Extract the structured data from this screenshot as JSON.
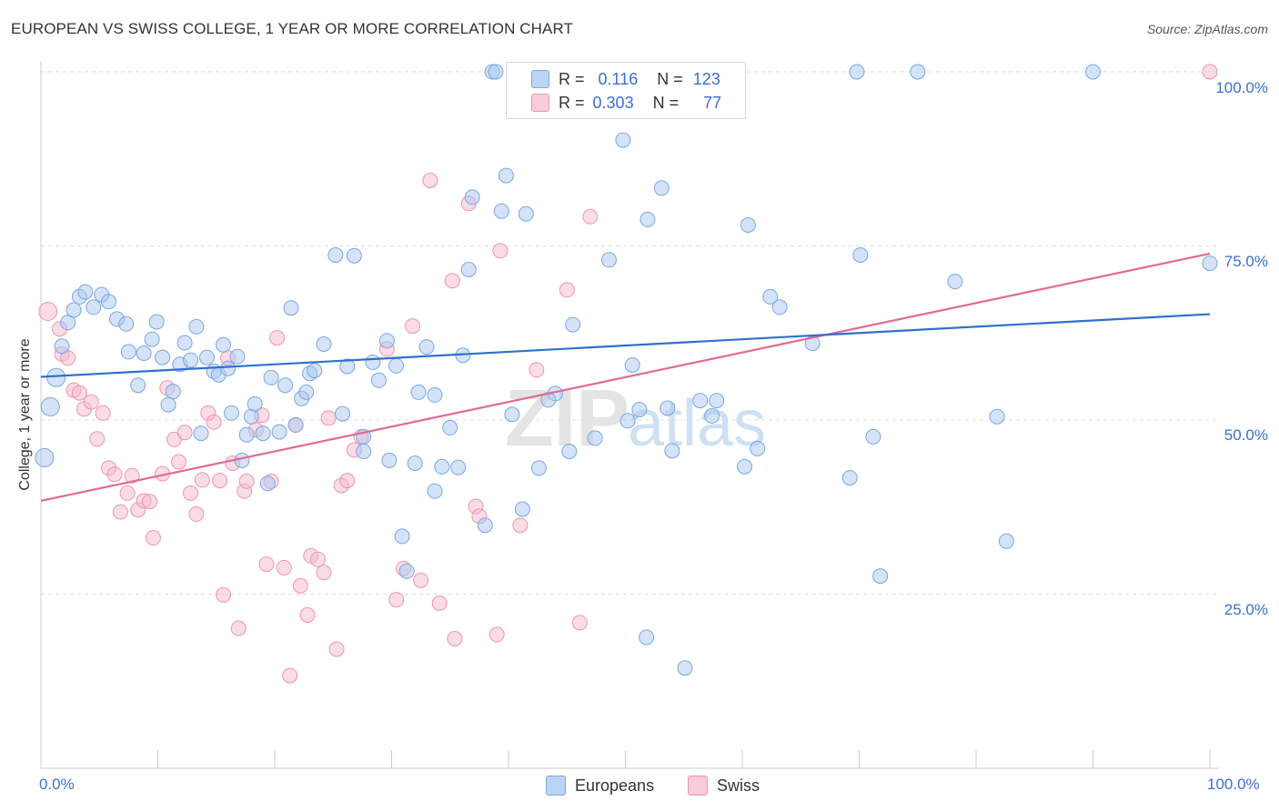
{
  "title": "EUROPEAN VS SWISS COLLEGE, 1 YEAR OR MORE CORRELATION CHART",
  "source": "Source: ZipAtlas.com",
  "legend": {
    "europeans": {
      "r_label": "R =",
      "r_value": "0.116",
      "n_label": "N =",
      "n_value": "123"
    },
    "swiss": {
      "r_label": "R =",
      "r_value": "0.303",
      "n_label": "N =",
      "n_value": "77"
    }
  },
  "bottom_legend": {
    "europeans": "Europeans",
    "swiss": "Swiss"
  },
  "colors": {
    "europeans_fill": "#a9c8f0",
    "europeans_stroke": "#7ba7e0",
    "europeans_line": "#2f6fd0",
    "swiss_fill": "#f6b9cb",
    "swiss_stroke": "#ee95b1",
    "swiss_line": "#e06a95",
    "tick_text": "#3b6fd0",
    "grid": "#dddddd"
  },
  "axis": {
    "ylabel": "College, 1 year or more",
    "x_min_label": "0.0%",
    "x_max_label": "100.0%",
    "y_ticks": [
      "100.0%",
      "75.0%",
      "50.0%",
      "25.0%"
    ]
  },
  "chart_data": {
    "type": "scatter",
    "title": "EUROPEAN VS SWISS COLLEGE, 1 YEAR OR MORE CORRELATION CHART",
    "xlabel": "",
    "ylabel": "College, 1 year or more",
    "xlim": [
      0,
      100
    ],
    "ylim": [
      0,
      100
    ],
    "grid": true,
    "legend_position": "top-center",
    "series": [
      {
        "name": "Europeans",
        "trend": {
          "x": [
            0,
            100
          ],
          "y": [
            56.2,
            65.2
          ]
        },
        "points": [
          [
            0.3,
            44.6
          ],
          [
            0.8,
            51.9
          ],
          [
            1.3,
            56.1
          ],
          [
            1.8,
            60.6
          ],
          [
            2.3,
            64.0
          ],
          [
            2.8,
            65.8
          ],
          [
            3.3,
            67.7
          ],
          [
            3.8,
            68.4
          ],
          [
            4.5,
            66.2
          ],
          [
            5.2,
            68.0
          ],
          [
            5.8,
            67.0
          ],
          [
            6.5,
            64.5
          ],
          [
            7.3,
            63.8
          ],
          [
            7.5,
            59.8
          ],
          [
            8.3,
            55.0
          ],
          [
            8.8,
            59.6
          ],
          [
            9.5,
            61.6
          ],
          [
            9.9,
            64.1
          ],
          [
            10.4,
            59.0
          ],
          [
            10.9,
            52.2
          ],
          [
            11.3,
            54.1
          ],
          [
            11.9,
            58.0
          ],
          [
            12.3,
            61.1
          ],
          [
            12.8,
            58.6
          ],
          [
            13.3,
            63.4
          ],
          [
            13.7,
            48.1
          ],
          [
            14.2,
            59.0
          ],
          [
            14.8,
            57.0
          ],
          [
            15.2,
            56.5
          ],
          [
            15.6,
            60.8
          ],
          [
            16.0,
            57.4
          ],
          [
            16.3,
            51.0
          ],
          [
            16.8,
            59.1
          ],
          [
            17.2,
            44.2
          ],
          [
            17.6,
            47.9
          ],
          [
            18.0,
            50.5
          ],
          [
            18.3,
            52.3
          ],
          [
            19.0,
            48.1
          ],
          [
            19.4,
            40.9
          ],
          [
            19.7,
            56.1
          ],
          [
            20.4,
            48.3
          ],
          [
            20.9,
            55.0
          ],
          [
            21.4,
            66.1
          ],
          [
            21.8,
            49.3
          ],
          [
            22.3,
            53.1
          ],
          [
            22.7,
            54.0
          ],
          [
            23.0,
            56.7
          ],
          [
            23.4,
            57.1
          ],
          [
            24.2,
            60.9
          ],
          [
            25.2,
            73.7
          ],
          [
            25.8,
            50.9
          ],
          [
            26.2,
            57.7
          ],
          [
            26.8,
            73.6
          ],
          [
            27.6,
            47.6
          ],
          [
            27.6,
            45.5
          ],
          [
            28.4,
            58.3
          ],
          [
            28.9,
            55.7
          ],
          [
            29.6,
            61.4
          ],
          [
            29.8,
            44.2
          ],
          [
            30.4,
            57.8
          ],
          [
            30.9,
            33.3
          ],
          [
            31.3,
            28.3
          ],
          [
            32.0,
            43.8
          ],
          [
            32.3,
            54.0
          ],
          [
            33.0,
            60.5
          ],
          [
            33.7,
            39.8
          ],
          [
            34.3,
            43.3
          ],
          [
            35.0,
            48.9
          ],
          [
            35.7,
            43.2
          ],
          [
            36.1,
            59.3
          ],
          [
            36.6,
            71.6
          ],
          [
            36.9,
            82.0
          ],
          [
            38.0,
            34.9
          ],
          [
            38.6,
            100.0
          ],
          [
            38.9,
            100.0
          ],
          [
            39.4,
            80.0
          ],
          [
            39.8,
            85.1
          ],
          [
            40.3,
            50.8
          ],
          [
            41.2,
            37.2
          ],
          [
            41.5,
            79.6
          ],
          [
            42.6,
            43.1
          ],
          [
            44.0,
            53.8
          ],
          [
            45.2,
            45.5
          ],
          [
            45.5,
            63.7
          ],
          [
            46.1,
            100.0
          ],
          [
            47.4,
            47.4
          ],
          [
            48.6,
            73.0
          ],
          [
            49.8,
            90.2
          ],
          [
            50.0,
            100.0
          ],
          [
            50.2,
            49.9
          ],
          [
            50.6,
            57.9
          ],
          [
            51.2,
            51.5
          ],
          [
            51.9,
            78.8
          ],
          [
            53.1,
            83.3
          ],
          [
            53.6,
            51.7
          ],
          [
            54.0,
            45.6
          ],
          [
            55.4,
            100.0
          ],
          [
            56.4,
            52.8
          ],
          [
            56.8,
            96.1
          ],
          [
            57.4,
            50.6
          ],
          [
            57.8,
            52.8
          ],
          [
            60.2,
            43.3
          ],
          [
            60.5,
            78.0
          ],
          [
            61.3,
            45.9
          ],
          [
            62.4,
            67.7
          ],
          [
            63.2,
            66.2
          ],
          [
            66.0,
            61.0
          ],
          [
            69.2,
            41.7
          ],
          [
            69.8,
            100.0
          ],
          [
            70.1,
            73.7
          ],
          [
            71.2,
            47.6
          ],
          [
            71.8,
            27.6
          ],
          [
            75.0,
            100.0
          ],
          [
            78.2,
            69.9
          ],
          [
            81.8,
            50.5
          ],
          [
            82.6,
            32.6
          ],
          [
            90.0,
            100.0
          ],
          [
            100.0,
            72.5
          ],
          [
            51.8,
            18.8
          ],
          [
            55.1,
            14.4
          ],
          [
            43.4,
            52.9
          ],
          [
            41.3,
            100.0
          ],
          [
            33.7,
            53.6
          ]
        ]
      },
      {
        "name": "Swiss",
        "trend": {
          "x": [
            0,
            100
          ],
          "y": [
            38.4,
            73.9
          ]
        },
        "points": [
          [
            0.6,
            65.6
          ],
          [
            1.6,
            63.1
          ],
          [
            1.8,
            59.5
          ],
          [
            2.3,
            58.9
          ],
          [
            2.8,
            54.3
          ],
          [
            3.3,
            53.9
          ],
          [
            3.7,
            51.6
          ],
          [
            4.3,
            52.6
          ],
          [
            4.8,
            47.3
          ],
          [
            5.3,
            51.0
          ],
          [
            5.8,
            43.1
          ],
          [
            6.3,
            42.2
          ],
          [
            6.8,
            36.8
          ],
          [
            7.4,
            39.5
          ],
          [
            7.8,
            42.0
          ],
          [
            8.3,
            37.1
          ],
          [
            8.8,
            38.4
          ],
          [
            9.3,
            38.3
          ],
          [
            9.6,
            33.1
          ],
          [
            10.4,
            42.3
          ],
          [
            10.8,
            54.6
          ],
          [
            11.4,
            47.2
          ],
          [
            11.8,
            44.0
          ],
          [
            12.3,
            48.2
          ],
          [
            12.8,
            39.5
          ],
          [
            13.3,
            36.5
          ],
          [
            13.8,
            41.4
          ],
          [
            14.3,
            51.0
          ],
          [
            14.8,
            49.7
          ],
          [
            15.3,
            41.3
          ],
          [
            15.6,
            24.9
          ],
          [
            16.0,
            58.9
          ],
          [
            16.4,
            43.8
          ],
          [
            16.9,
            20.1
          ],
          [
            17.4,
            39.8
          ],
          [
            17.6,
            41.2
          ],
          [
            18.4,
            48.6
          ],
          [
            18.9,
            50.7
          ],
          [
            19.3,
            29.3
          ],
          [
            19.7,
            41.2
          ],
          [
            20.2,
            61.8
          ],
          [
            20.8,
            28.8
          ],
          [
            21.3,
            13.3
          ],
          [
            21.8,
            49.3
          ],
          [
            22.2,
            26.2
          ],
          [
            22.8,
            22.0
          ],
          [
            23.1,
            30.5
          ],
          [
            23.7,
            30.0
          ],
          [
            24.2,
            28.1
          ],
          [
            24.6,
            50.3
          ],
          [
            25.3,
            17.1
          ],
          [
            25.7,
            40.6
          ],
          [
            26.2,
            41.3
          ],
          [
            26.8,
            45.7
          ],
          [
            27.4,
            47.6
          ],
          [
            29.6,
            60.2
          ],
          [
            30.4,
            24.2
          ],
          [
            31.0,
            28.7
          ],
          [
            31.8,
            63.5
          ],
          [
            32.5,
            27.0
          ],
          [
            33.3,
            84.4
          ],
          [
            34.1,
            23.7
          ],
          [
            35.2,
            70.0
          ],
          [
            35.4,
            18.6
          ],
          [
            36.6,
            81.1
          ],
          [
            37.2,
            37.6
          ],
          [
            37.5,
            36.2
          ],
          [
            39.0,
            19.2
          ],
          [
            39.3,
            74.3
          ],
          [
            41.0,
            34.9
          ],
          [
            42.2,
            100.0
          ],
          [
            42.4,
            57.2
          ],
          [
            45.0,
            68.7
          ],
          [
            46.1,
            20.9
          ],
          [
            47.0,
            79.2
          ],
          [
            50.1,
            100.0
          ],
          [
            100.0,
            100.0
          ]
        ]
      }
    ]
  }
}
